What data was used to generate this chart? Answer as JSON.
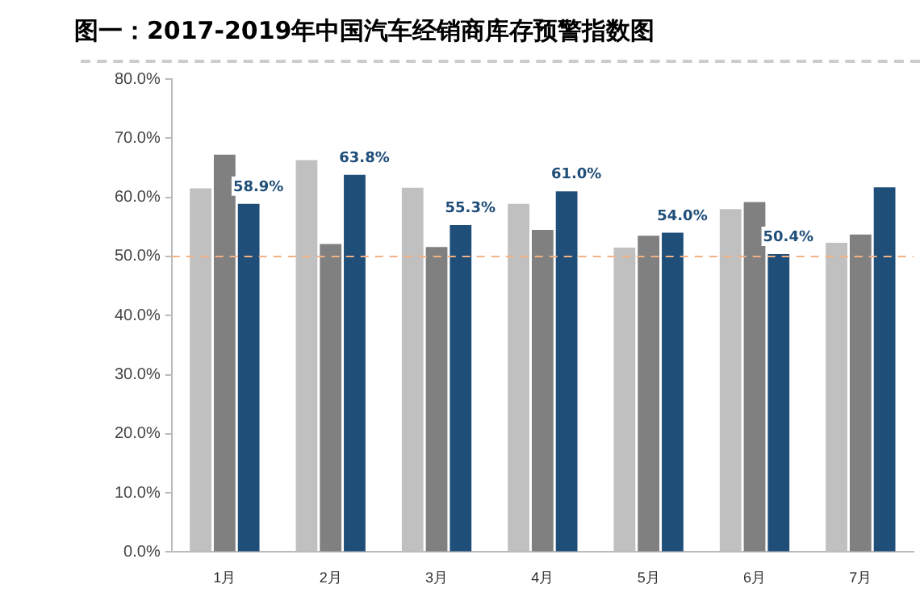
{
  "chart_data": {
    "type": "bar",
    "title": "图一：2017-2019年中国汽车经销商库存预警指数图",
    "categories": [
      "1月",
      "2月",
      "3月",
      "4月",
      "5月",
      "6月",
      "7月"
    ],
    "series": [
      {
        "color": "#c0c0c0",
        "values": [
          61.5,
          66.3,
          61.6,
          58.9,
          51.5,
          58.0,
          52.3
        ]
      },
      {
        "color": "#808080",
        "values": [
          67.2,
          52.1,
          51.6,
          54.5,
          53.5,
          59.2,
          53.7
        ]
      },
      {
        "color": "#1f4e79",
        "values": [
          58.9,
          63.8,
          55.3,
          61.0,
          54.0,
          50.4,
          61.7
        ],
        "value_labels": [
          "58.9%",
          "63.8%",
          "55.3%",
          "61.0%",
          "54.0%",
          "50.4%",
          null
        ]
      }
    ],
    "ylim": [
      0,
      80
    ],
    "yticks": [
      {
        "value": 0,
        "label": "0.0%"
      },
      {
        "value": 10,
        "label": "10.0%"
      },
      {
        "value": 20,
        "label": "20.0%"
      },
      {
        "value": 30,
        "label": "30.0%"
      },
      {
        "value": 40,
        "label": "40.0%"
      },
      {
        "value": 50,
        "label": "50.0%"
      },
      {
        "value": 60,
        "label": "60.0%"
      },
      {
        "value": 70,
        "label": "70.0%"
      },
      {
        "value": 80,
        "label": "80.0%"
      }
    ],
    "ref_lines": [
      {
        "axis": "y",
        "value": 50,
        "color": "#f4b183",
        "line_style": "dashed"
      }
    ]
  }
}
